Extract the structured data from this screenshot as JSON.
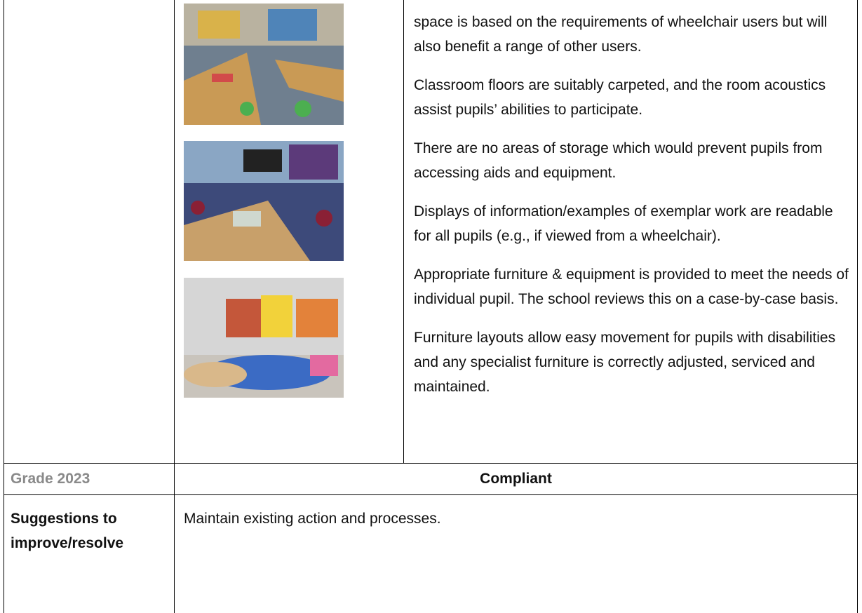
{
  "content_row": {
    "paragraphs": [
      "space is based on the requirements of wheelchair users but will also benefit a range of other users.",
      "Classroom floors are suitably carpeted, and the room acoustics assist pupils’ abilities to participate.",
      "There are no areas of storage which would prevent pupils from accessing aids and equipment.",
      "Displays of information/examples of exemplar work are readable for all pupils (e.g., if viewed from a wheelchair).",
      "Appropriate furniture & equipment is provided to meet the needs of individual pupil. The school reviews this on a case-by-case basis.",
      "Furniture layouts allow easy movement for pupils with disabilities and any specialist furniture is correctly adjusted, serviced and maintained."
    ]
  },
  "grade_row": {
    "label": "Grade 2023",
    "value": "Compliant"
  },
  "suggestions_row": {
    "label": "Suggestions to improve/resolve",
    "value": "Maintain existing action and processes."
  }
}
